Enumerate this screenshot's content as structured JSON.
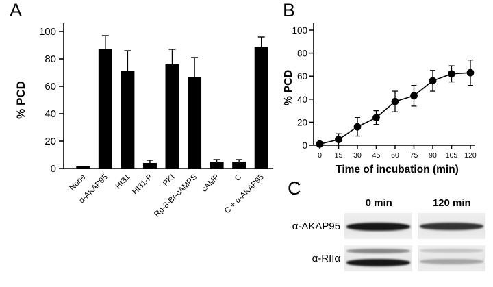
{
  "panels": {
    "a_label": "A",
    "b_label": "B",
    "c_label": "C"
  },
  "chart_data": [
    {
      "id": "panelA",
      "type": "bar",
      "title": "",
      "xlabel": "",
      "ylabel": "% PCD",
      "ylim": [
        0,
        100
      ],
      "yticks": [
        0,
        20,
        40,
        60,
        80,
        100
      ],
      "categories": [
        "None",
        "α-AKAP95",
        "Ht31",
        "Ht31-P",
        "PKI",
        "Rp-8-Br-cAMPS",
        "cAMP",
        "C",
        "C + α-AKAP95"
      ],
      "values": [
        1.5,
        87,
        71,
        4,
        76,
        67,
        5,
        5,
        89
      ],
      "errors": [
        0,
        10,
        15,
        2,
        11,
        14,
        1.5,
        1.5,
        7
      ],
      "bar_color": "#000000",
      "grid": false
    },
    {
      "id": "panelB",
      "type": "line",
      "title": "",
      "xlabel": "Time of incubation (min)",
      "ylabel": "% PCD",
      "ylim": [
        0,
        100
      ],
      "yticks": [
        0,
        20,
        40,
        60,
        80,
        100
      ],
      "x": [
        0,
        15,
        30,
        45,
        60,
        75,
        90,
        105,
        120
      ],
      "values": [
        1,
        5,
        16,
        24,
        38,
        43,
        56,
        62,
        63
      ],
      "errors": [
        2,
        5,
        8,
        6,
        9,
        9,
        9,
        7,
        11
      ],
      "marker": "circle",
      "line_color": "#000000",
      "grid": false,
      "legend": "none"
    }
  ],
  "blot": {
    "headers": [
      "0 min",
      "120 min"
    ],
    "rows": [
      {
        "label": "α-AKAP95",
        "lanes": [
          {
            "bands": [
              {
                "pos": 0.38,
                "thickness": 12,
                "strength": 0.95
              }
            ]
          },
          {
            "bands": [
              {
                "pos": 0.38,
                "thickness": 11,
                "strength": 0.82
              }
            ]
          }
        ]
      },
      {
        "label": "α-RIIα",
        "lanes": [
          {
            "bands": [
              {
                "pos": 0.14,
                "thickness": 7,
                "strength": 0.45
              },
              {
                "pos": 0.52,
                "thickness": 11,
                "strength": 0.95
              }
            ]
          },
          {
            "bands": [
              {
                "pos": 0.14,
                "thickness": 6,
                "strength": 0.18
              },
              {
                "pos": 0.52,
                "thickness": 8,
                "strength": 0.3
              }
            ]
          }
        ]
      }
    ]
  }
}
